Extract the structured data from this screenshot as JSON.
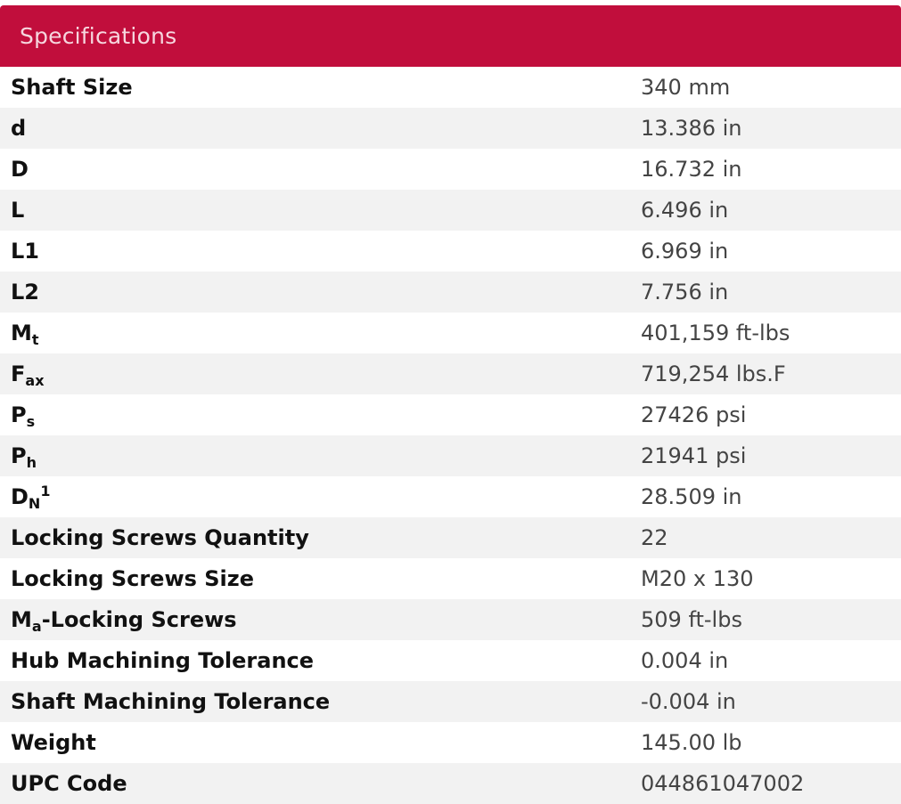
{
  "header": {
    "title": "Specifications"
  },
  "specs": [
    {
      "label": "Shaft Size",
      "value": "340 mm"
    },
    {
      "label": "d",
      "value": "13.386 in"
    },
    {
      "label": "D",
      "value": "16.732 in"
    },
    {
      "label": "L",
      "value": "6.496 in"
    },
    {
      "label": "L1",
      "value": "6.969 in"
    },
    {
      "label": "L2",
      "value": "7.756 in"
    },
    {
      "label": "M",
      "label_sub": "t",
      "value": "401,159 ft-lbs"
    },
    {
      "label": "F",
      "label_sub": "ax",
      "value": "719,254 lbs.F"
    },
    {
      "label": "P",
      "label_sub": "s",
      "value": "27426 psi"
    },
    {
      "label": "P",
      "label_sub": "h",
      "value": "21941 psi"
    },
    {
      "label": "D",
      "label_sub": "N",
      "label_sup": "1",
      "value": "28.509 in"
    },
    {
      "label": "Locking Screws Quantity",
      "value": "22"
    },
    {
      "label": "Locking Screws Size",
      "value": "M20 x 130"
    },
    {
      "label": "M",
      "label_sub": "a",
      "label_rest": "-Locking Screws",
      "value": "509 ft-lbs"
    },
    {
      "label": "Hub Machining Tolerance",
      "value": "0.004 in"
    },
    {
      "label": "Shaft Machining Tolerance",
      "value": "-0.004 in"
    },
    {
      "label": "Weight",
      "value": "145.00 lb"
    },
    {
      "label": "UPC Code",
      "value": "044861047002"
    }
  ]
}
